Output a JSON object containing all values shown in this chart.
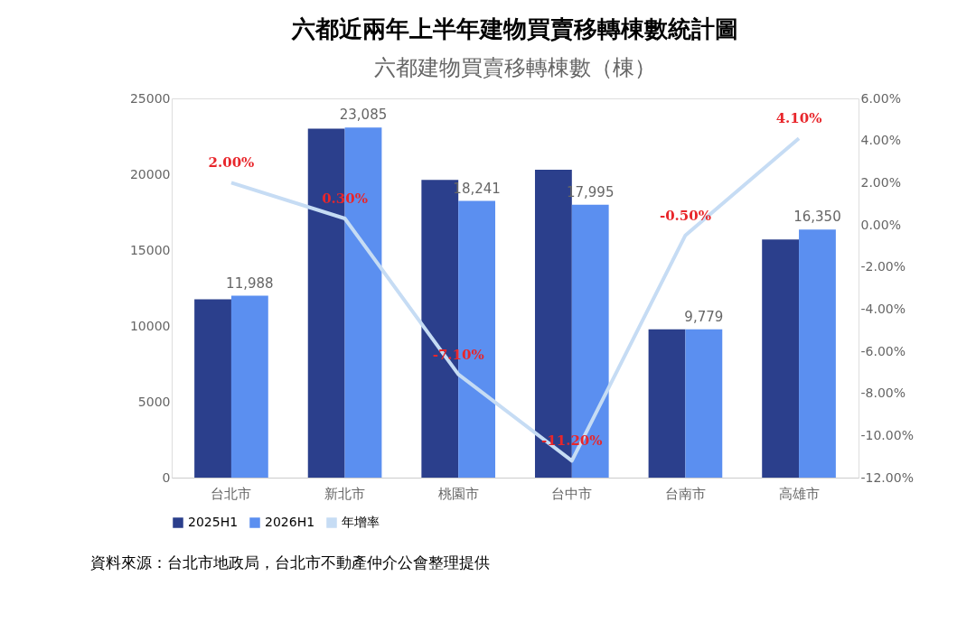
{
  "chart_data": {
    "type": "bar",
    "title": "六都近兩年上半年建物買賣移轉棟數統計圖",
    "subtitle": "六都建物買賣移轉棟數（棟）",
    "categories": [
      "台北市",
      "新北市",
      "桃園市",
      "台中市",
      "台南市",
      "高雄市"
    ],
    "series": [
      {
        "name": "2025H1",
        "color": "#2b3f8c",
        "values": [
          11750,
          23000,
          19630,
          20300,
          9780,
          15700
        ]
      },
      {
        "name": "2026H1",
        "color": "#5b8ff0",
        "values": [
          11988,
          23085,
          18241,
          17995,
          9779,
          16350
        ],
        "value_labels": [
          "11,988",
          "23,085",
          "18,241",
          "17,995",
          "9,779",
          "16,350"
        ]
      },
      {
        "name": "年增率",
        "type": "line",
        "axis": "y2",
        "color": "#c6dcf4",
        "values": [
          2.0,
          0.3,
          -7.1,
          -11.2,
          -0.5,
          4.1
        ],
        "value_labels": [
          "2.00%",
          "0.30%",
          "-7.10%",
          "-11.20%",
          "-0.50%",
          "4.10%"
        ]
      }
    ],
    "ylim": [
      0,
      25000
    ],
    "yticks": [
      0,
      5000,
      10000,
      15000,
      20000,
      25000
    ],
    "y2lim": [
      -12,
      6
    ],
    "y2ticks": [
      {
        "value": 6,
        "label": "6.00%"
      },
      {
        "value": 4,
        "label": "4.00%"
      },
      {
        "value": 2,
        "label": "2.00%"
      },
      {
        "value": 0,
        "label": "0.00%"
      },
      {
        "value": -2,
        "label": "-2.00%"
      },
      {
        "value": -4,
        "label": "-4.00%"
      },
      {
        "value": -6,
        "label": "-6.00%"
      },
      {
        "value": -8,
        "label": "-8.00%"
      },
      {
        "value": -10,
        "label": "-10.00%"
      },
      {
        "value": -12,
        "label": "-12.00%"
      }
    ],
    "legend": "bottom",
    "grid": false,
    "annotations": [
      "資料來源：台北市地政局，台北市不動產仲介公會整理提供"
    ]
  }
}
